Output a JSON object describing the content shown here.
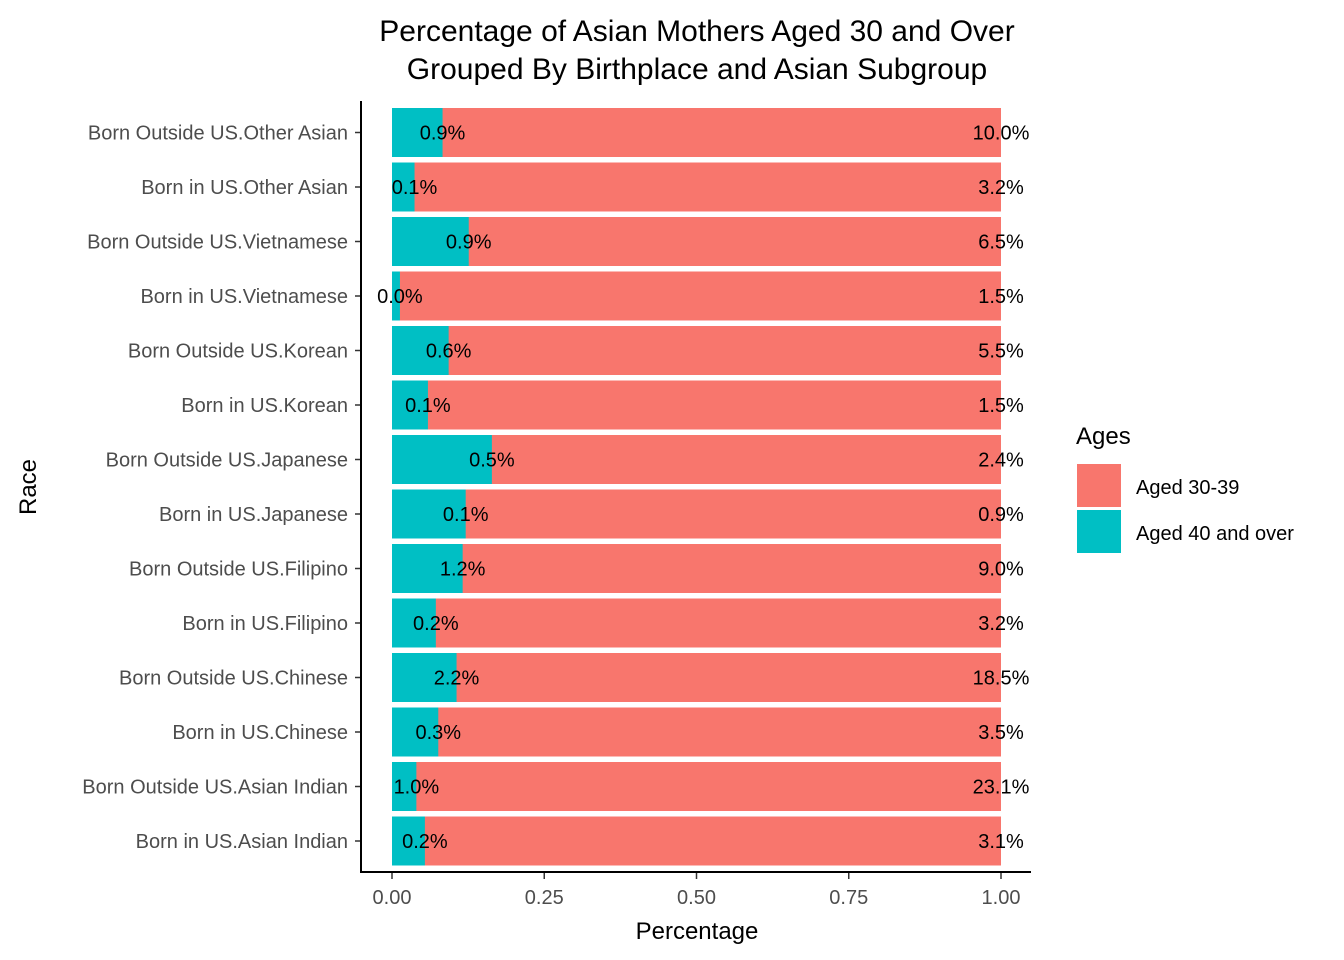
{
  "chart_data": {
    "type": "bar",
    "orientation": "horizontal",
    "stacking": "fill",
    "title_lines": [
      "Percentage of Asian Mothers Aged 30 and Over",
      "Grouped By Birthplace and Asian Subgroup"
    ],
    "xlabel": "Percentage",
    "ylabel": "Race",
    "xlim": [
      0,
      1
    ],
    "xticks": [
      "0.00",
      "0.25",
      "0.50",
      "0.75",
      "1.00"
    ],
    "grid": false,
    "legend": {
      "title": "Ages",
      "position": "right",
      "entries": [
        {
          "label": "Aged 30-39",
          "color": "#F8766D"
        },
        {
          "label": "Aged 40 and over",
          "color": "#00BFC4"
        }
      ]
    },
    "categories": [
      "Born Outside US.Other Asian",
      "Born in US.Other Asian",
      "Born Outside US.Vietnamese",
      "Born in US.Vietnamese",
      "Born Outside US.Korean",
      "Born in US.Korean",
      "Born Outside US.Japanese",
      "Born in US.Japanese",
      "Born Outside US.Filipino",
      "Born in US.Filipino",
      "Born Outside US.Chinese",
      "Born in US.Chinese",
      "Born Outside US.Asian Indian",
      "Born in US.Asian Indian"
    ],
    "series": [
      {
        "name": "Aged 40 and over",
        "color": "#00BFC4",
        "share": [
          0.083,
          0.037,
          0.126,
          0.013,
          0.093,
          0.059,
          0.164,
          0.121,
          0.116,
          0.072,
          0.106,
          0.076,
          0.04,
          0.054
        ],
        "labels": [
          "0.9%",
          "0.1%",
          "0.9%",
          "0.0%",
          "0.6%",
          "0.1%",
          "0.5%",
          "0.1%",
          "1.2%",
          "0.2%",
          "2.2%",
          "0.3%",
          "1.0%",
          "0.2%"
        ]
      },
      {
        "name": "Aged 30-39",
        "color": "#F8766D",
        "labels": [
          "10.0%",
          "3.2%",
          "6.5%",
          "1.5%",
          "5.5%",
          "1.5%",
          "2.4%",
          "0.9%",
          "9.0%",
          "3.2%",
          "18.5%",
          "3.5%",
          "23.1%",
          "3.1%"
        ]
      }
    ]
  }
}
